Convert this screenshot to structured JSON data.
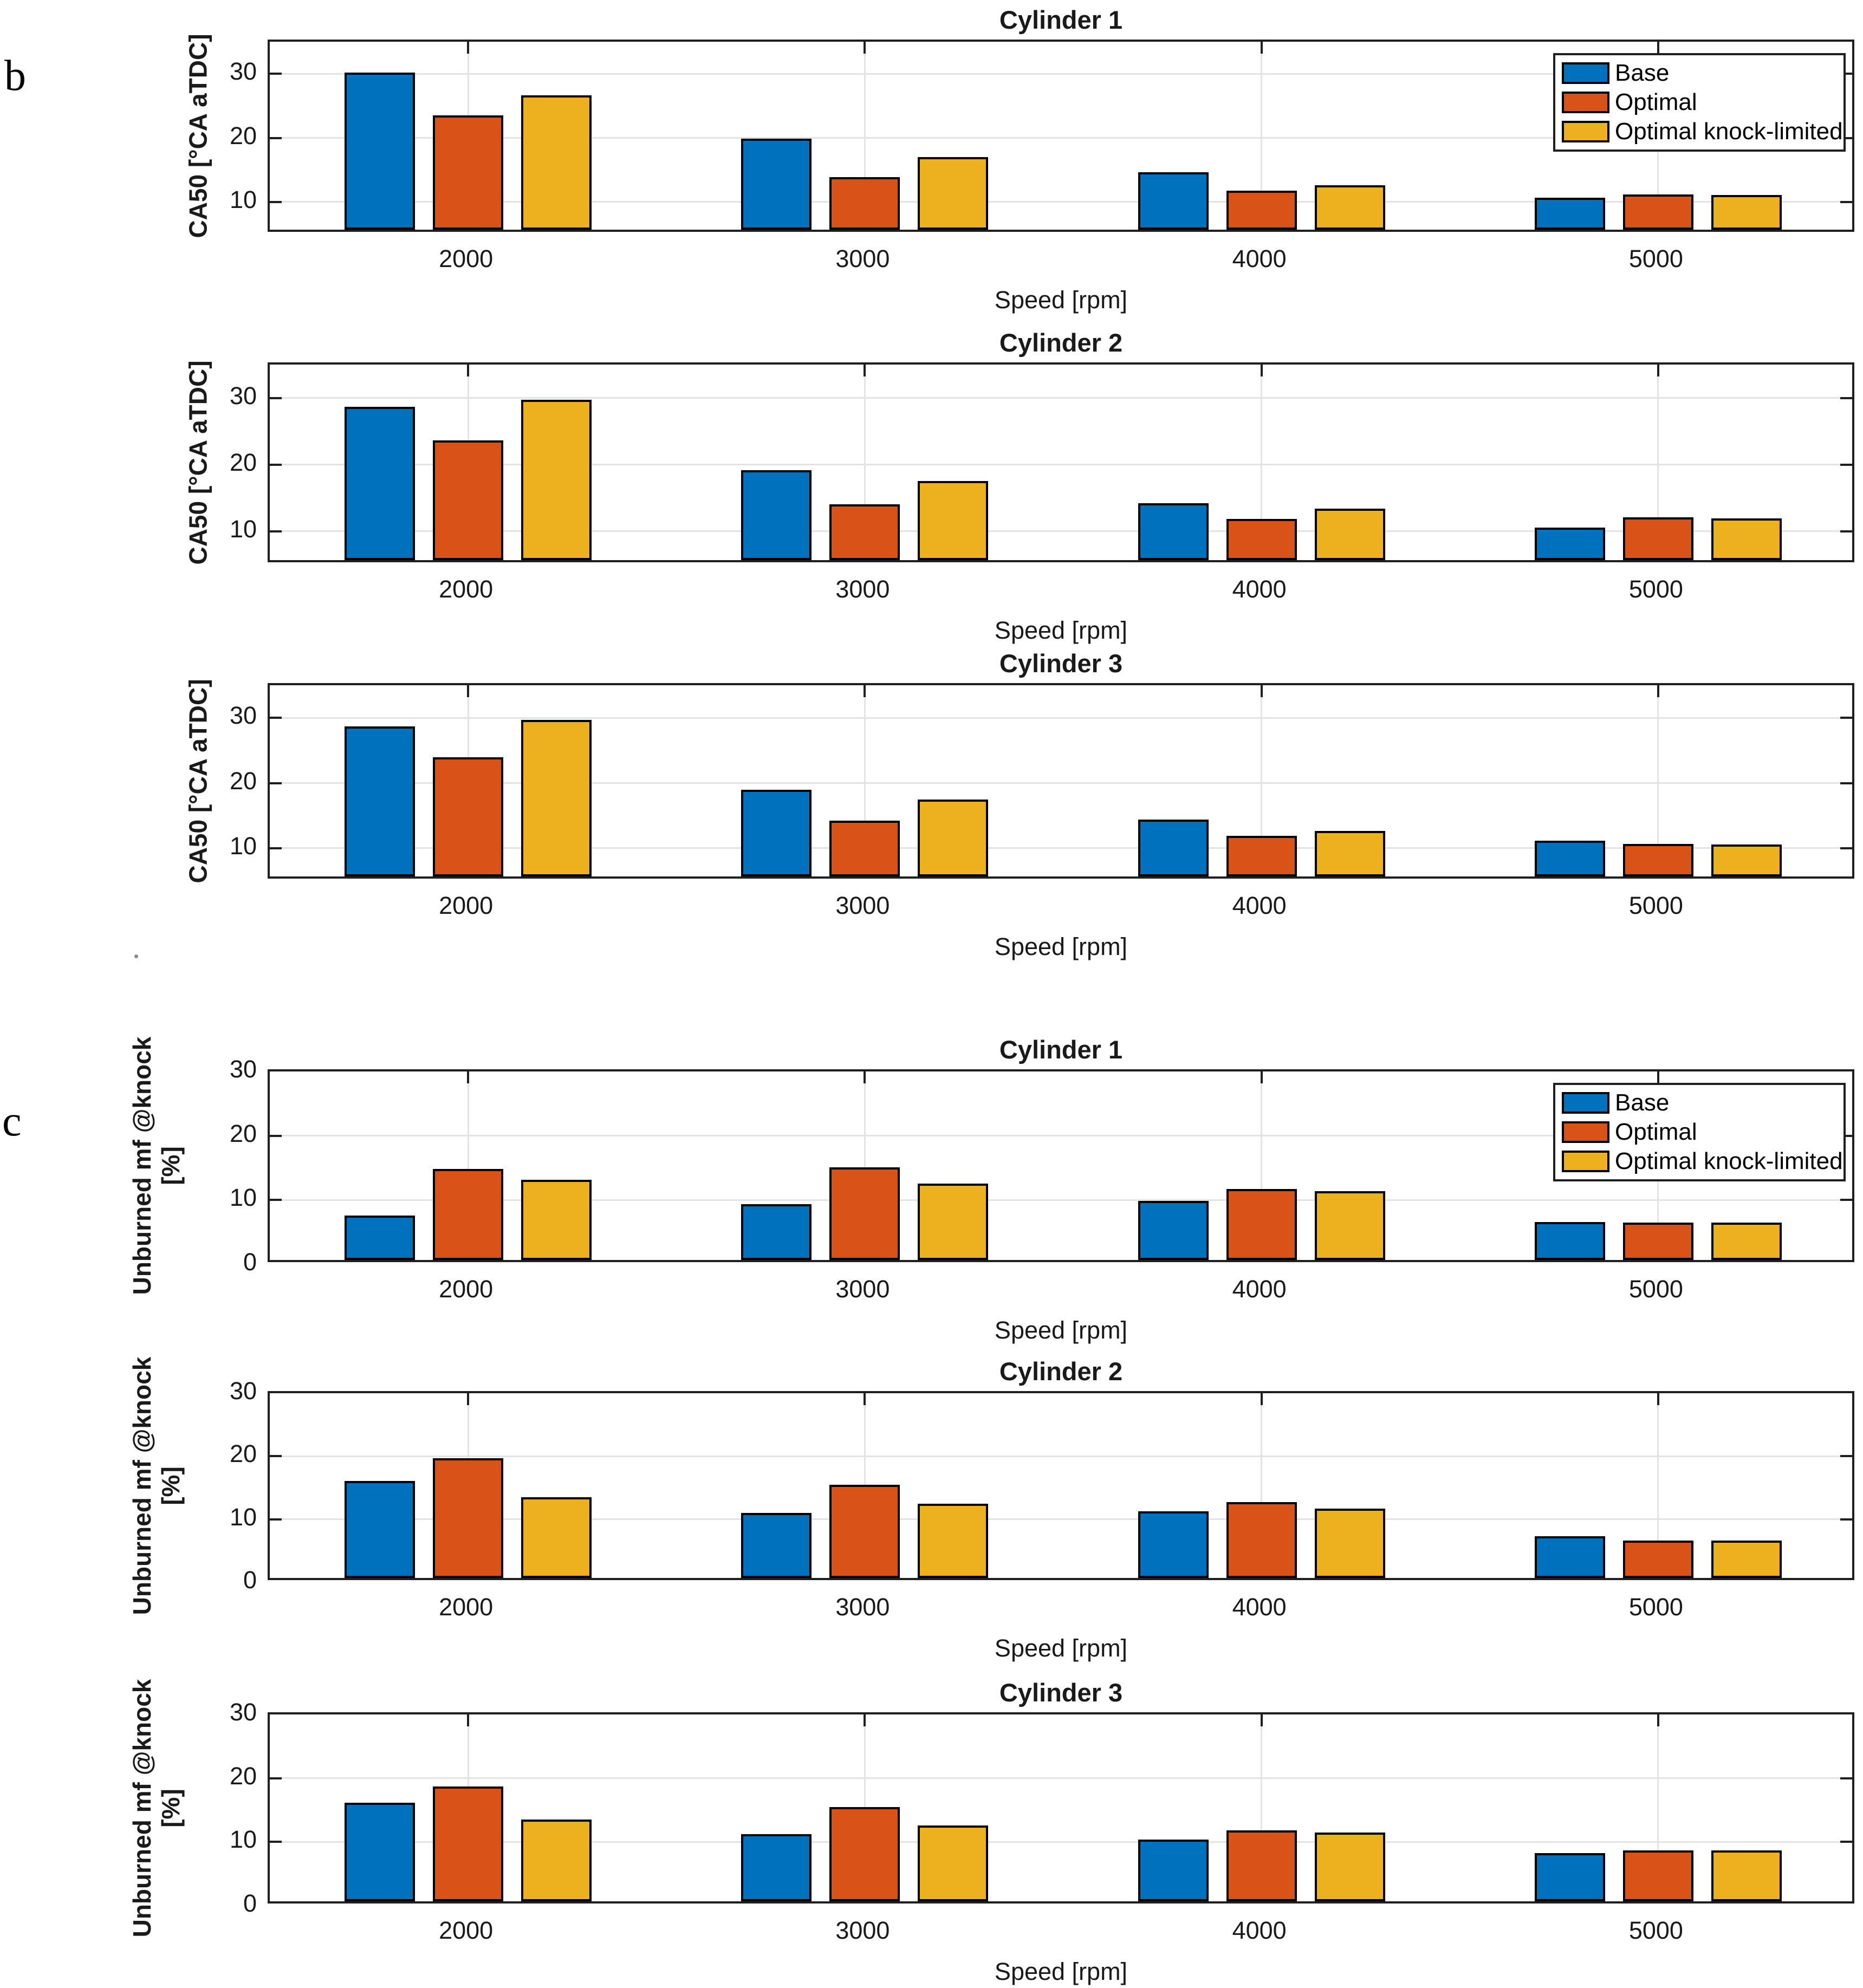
{
  "figure": {
    "panel_label_b": "b",
    "panel_label_c": "c",
    "xlabel": "Speed [rpm]",
    "categories": [
      "2000",
      "3000",
      "4000",
      "5000"
    ],
    "legend_labels": [
      "Base",
      "Optimal",
      "Optimal knock-limited"
    ],
    "series_colors": [
      "#0072BD",
      "#D95319",
      "#EDB120"
    ],
    "grid_color": "#e3e3e3",
    "axis_color": "#1f1f1f"
  },
  "chart_data": [
    {
      "type": "bar",
      "panel": "b",
      "title": "Cylinder 1",
      "ylabel_lines": [
        "CA50 [°CA aTDC]"
      ],
      "xlabel": "Speed [rpm]",
      "categories": [
        "2000",
        "3000",
        "4000",
        "5000"
      ],
      "ylim": [
        5,
        35
      ],
      "yticks": [
        10,
        20,
        30
      ],
      "grid": true,
      "legend_position": "top-right-inside",
      "series": [
        {
          "name": "Base",
          "values": [
            29.5,
            19.2,
            14.0,
            10.0
          ]
        },
        {
          "name": "Optimal",
          "values": [
            22.8,
            13.2,
            11.1,
            10.5
          ]
        },
        {
          "name": "Optimal knock-limited",
          "values": [
            26.0,
            16.3,
            11.9,
            10.4
          ]
        }
      ]
    },
    {
      "type": "bar",
      "panel": "b",
      "title": "Cylinder 2",
      "ylabel_lines": [
        "CA50 [°CA aTDC]"
      ],
      "xlabel": "Speed [rpm]",
      "categories": [
        "2000",
        "3000",
        "4000",
        "5000"
      ],
      "ylim": [
        5,
        35
      ],
      "yticks": [
        10,
        20,
        30
      ],
      "grid": true,
      "legend_position": null,
      "series": [
        {
          "name": "Base",
          "values": [
            28.0,
            18.5,
            13.5,
            9.9
          ]
        },
        {
          "name": "Optimal",
          "values": [
            23.0,
            13.4,
            11.2,
            11.4
          ]
        },
        {
          "name": "Optimal knock-limited",
          "values": [
            29.1,
            16.9,
            12.7,
            11.3
          ]
        }
      ]
    },
    {
      "type": "bar",
      "panel": "b",
      "title": "Cylinder 3",
      "ylabel_lines": [
        "CA50 [°CA aTDC]"
      ],
      "xlabel": "Speed [rpm]",
      "categories": [
        "2000",
        "3000",
        "4000",
        "5000"
      ],
      "ylim": [
        5,
        35
      ],
      "yticks": [
        10,
        20,
        30
      ],
      "grid": true,
      "legend_position": null,
      "series": [
        {
          "name": "Base",
          "values": [
            28.0,
            18.3,
            13.7,
            10.5
          ]
        },
        {
          "name": "Optimal",
          "values": [
            23.3,
            13.6,
            11.2,
            10.0
          ]
        },
        {
          "name": "Optimal knock-limited",
          "values": [
            29.0,
            16.8,
            12.0,
            9.9
          ]
        }
      ]
    },
    {
      "type": "bar",
      "panel": "c",
      "title": "Cylinder 1",
      "ylabel_lines": [
        "Unburned mf @knock",
        "[%]"
      ],
      "xlabel": "Speed [rpm]",
      "categories": [
        "2000",
        "3000",
        "4000",
        "5000"
      ],
      "ylim": [
        0,
        30
      ],
      "yticks": [
        0,
        10,
        20,
        30
      ],
      "grid": true,
      "legend_position": "top-right-inside",
      "series": [
        {
          "name": "Base",
          "values": [
            6.9,
            8.7,
            9.2,
            5.9
          ]
        },
        {
          "name": "Optimal",
          "values": [
            14.2,
            14.4,
            11.0,
            5.8
          ]
        },
        {
          "name": "Optimal knock-limited",
          "values": [
            12.5,
            11.9,
            10.7,
            5.8
          ]
        }
      ]
    },
    {
      "type": "bar",
      "panel": "c",
      "title": "Cylinder 2",
      "ylabel_lines": [
        "Unburned mf @knock",
        "[%]"
      ],
      "xlabel": "Speed [rpm]",
      "categories": [
        "2000",
        "3000",
        "4000",
        "5000"
      ],
      "ylim": [
        0,
        30
      ],
      "yticks": [
        0,
        10,
        20,
        30
      ],
      "grid": true,
      "legend_position": null,
      "series": [
        {
          "name": "Base",
          "values": [
            15.4,
            10.3,
            10.6,
            6.6
          ]
        },
        {
          "name": "Optimal",
          "values": [
            19.0,
            14.8,
            12.0,
            5.9
          ]
        },
        {
          "name": "Optimal knock-limited",
          "values": [
            12.8,
            11.8,
            11.0,
            5.9
          ]
        }
      ]
    },
    {
      "type": "bar",
      "panel": "c",
      "title": "Cylinder 3",
      "ylabel_lines": [
        "Unburned mf @knock",
        "[%]"
      ],
      "xlabel": "Speed [rpm]",
      "categories": [
        "2000",
        "3000",
        "4000",
        "5000"
      ],
      "ylim": [
        0,
        30
      ],
      "yticks": [
        0,
        10,
        20,
        30
      ],
      "grid": true,
      "legend_position": null,
      "series": [
        {
          "name": "Base",
          "values": [
            15.5,
            10.5,
            9.7,
            7.6
          ]
        },
        {
          "name": "Optimal",
          "values": [
            18.0,
            14.8,
            11.1,
            8.0
          ]
        },
        {
          "name": "Optimal knock-limited",
          "values": [
            12.8,
            11.9,
            10.8,
            8.0
          ]
        }
      ]
    }
  ]
}
